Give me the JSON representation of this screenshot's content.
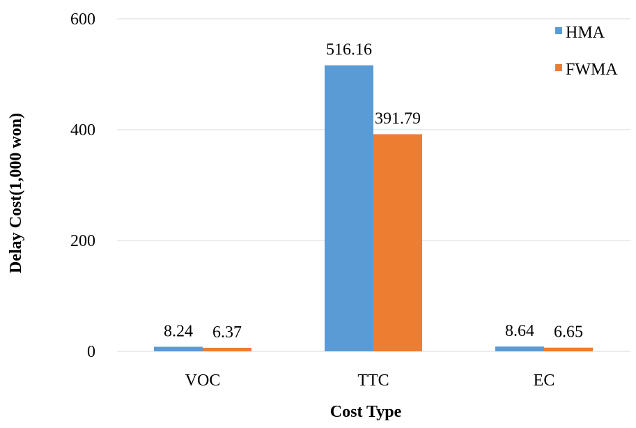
{
  "chart_data": {
    "type": "bar",
    "categories": [
      "VOC",
      "TTC",
      "EC"
    ],
    "series": [
      {
        "name": "HMA",
        "values": [
          8.24,
          516.16,
          8.64
        ],
        "labels": [
          "8.24",
          "516.16",
          "8.64"
        ]
      },
      {
        "name": "FWMA",
        "values": [
          6.37,
          391.79,
          6.65
        ],
        "labels": [
          "6.37",
          "391.79",
          "6.65"
        ]
      }
    ],
    "xlabel": "Cost Type",
    "ylabel": "Delay Cost(1,000 won)",
    "ylim": [
      0,
      600
    ],
    "yticks": [
      "0",
      "200",
      "400",
      "600"
    ],
    "grid": true,
    "legend_position": "top-right"
  },
  "colors": {
    "HMA": "#5b9bd5",
    "FWMA": "#ed7d31",
    "grid": "#d9d9d9"
  }
}
